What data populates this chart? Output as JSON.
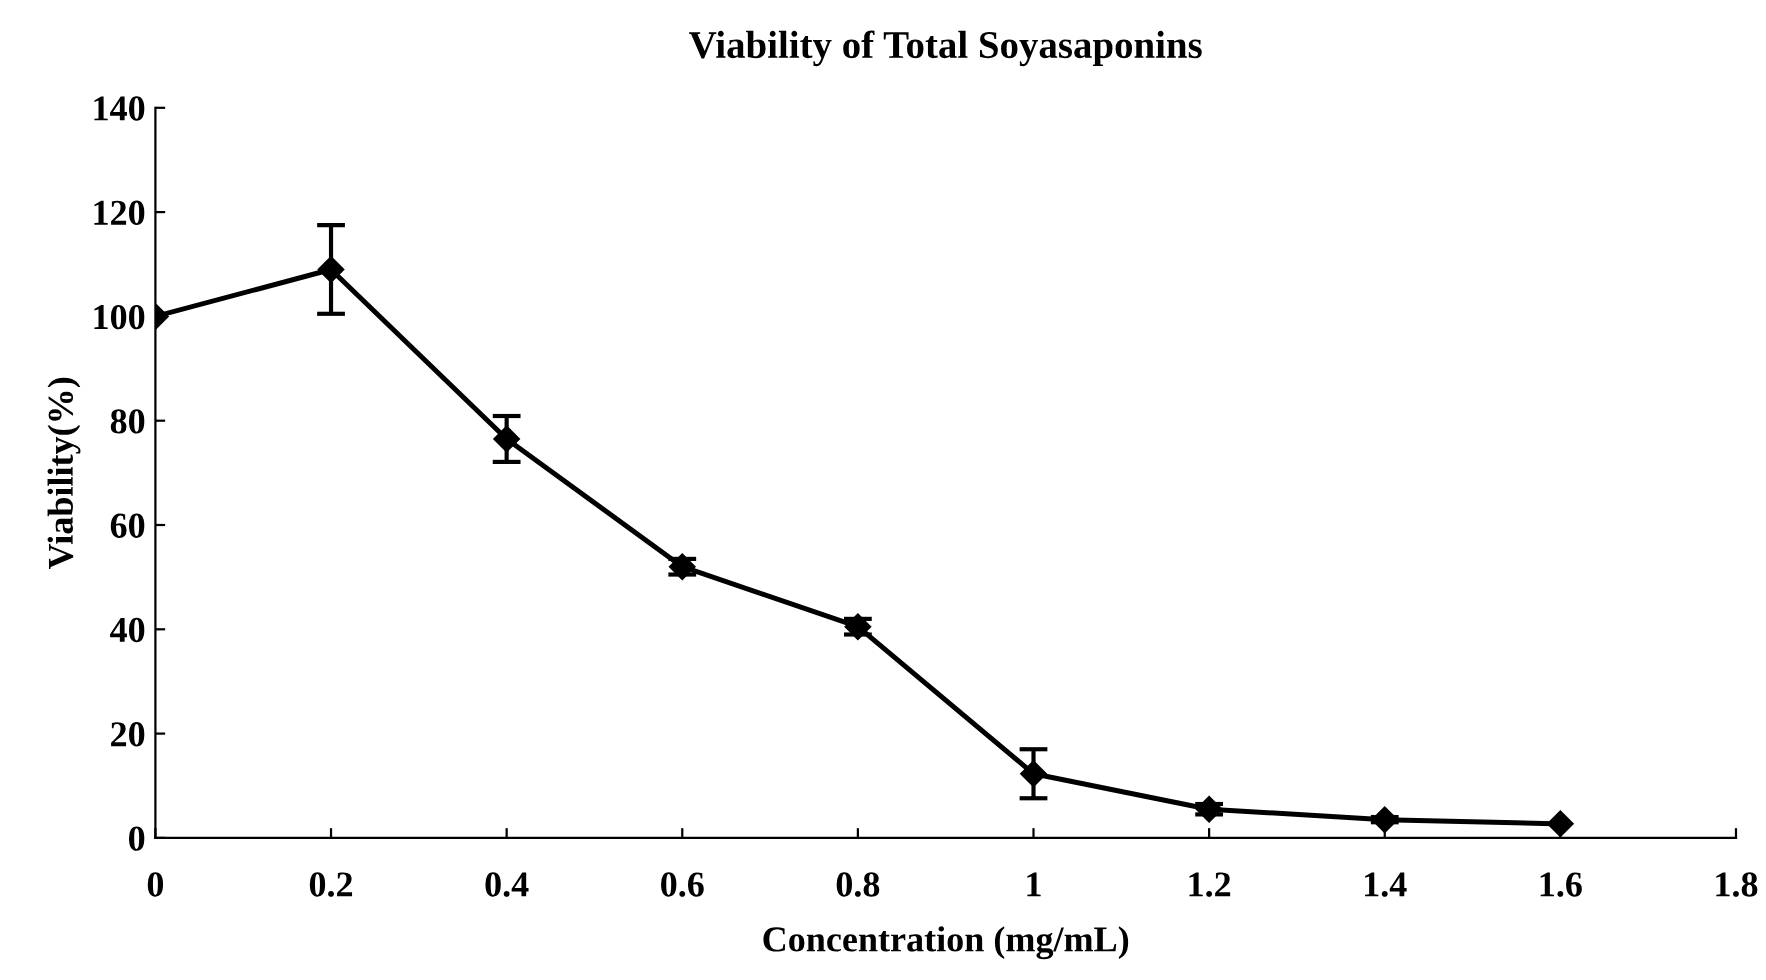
{
  "chart_data": {
    "type": "line",
    "title": "Viability of Total Soyasaponins",
    "xlabel": "Concentration (mg/mL)",
    "ylabel": "Viability(%)",
    "x": [
      0,
      0.2,
      0.4,
      0.6,
      0.8,
      1.0,
      1.2,
      1.4,
      1.6
    ],
    "series": [
      {
        "color": "#000000",
        "values": [
          100,
          109,
          76.5,
          52,
          40.5,
          12.3,
          5.5,
          3.5,
          2.7
        ],
        "errors": [
          null,
          8.5,
          4.4,
          1.5,
          1.5,
          4.7,
          1,
          0.5,
          null
        ]
      }
    ],
    "xlim": [
      0,
      1.8
    ],
    "xticks": [
      0,
      0.2,
      0.4,
      0.6,
      0.8,
      1,
      1.2,
      1.4,
      1.6,
      1.8
    ],
    "ylim": [
      0,
      140
    ],
    "yticks": [
      0,
      20,
      40,
      60,
      80,
      100,
      120,
      140
    ],
    "marker": "diamond",
    "line_style": "solid",
    "grid": false,
    "legend": false
  }
}
